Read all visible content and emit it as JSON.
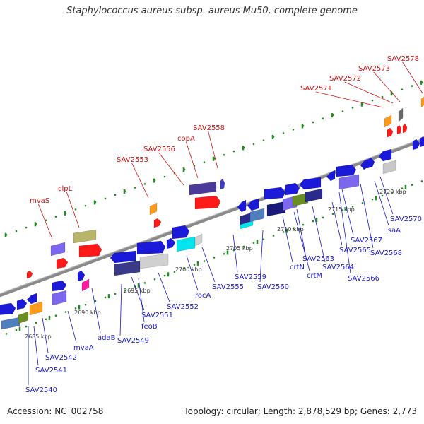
{
  "title": "Staphylococcus aureus subsp. aureus Mu50, complete genome",
  "footer": {
    "accession": "Accession: NC_002758",
    "summary": "Topology: circular; Length: 2,878,529 bp; Genes: 2,773"
  },
  "colors": {
    "backbone": "#8a8a8a",
    "tick": "#228b22",
    "top_label": "#d01010",
    "bottom_label": "#1a1ad0"
  },
  "scale_ticks": [
    "2685 kbp",
    "2690 kbp",
    "2695 kbp",
    "2700 kbp",
    "2705 kbp",
    "2710 kbp",
    "2715 kbp",
    "2720 kbp"
  ],
  "top_labels": [
    "mvaS",
    "clpL",
    "SAV2553",
    "SAV2556",
    "copA",
    "SAV2558",
    "SAV2571",
    "SAV2572",
    "SAV2573",
    "SAV2578"
  ],
  "bottom_labels": [
    "SAV2540",
    "SAV2541",
    "SAV2542",
    "mvaA",
    "adaB",
    "SAV2549",
    "feoB",
    "SAV2551",
    "SAV2552",
    "rocA",
    "SAV2555",
    "SAV2559",
    "SAV2560",
    "crtN",
    "crtM",
    "SAV2563",
    "SAV2564",
    "SAV2565",
    "SAV2566",
    "SAV2567",
    "SAV2568",
    "isaA",
    "SAV2570"
  ]
}
